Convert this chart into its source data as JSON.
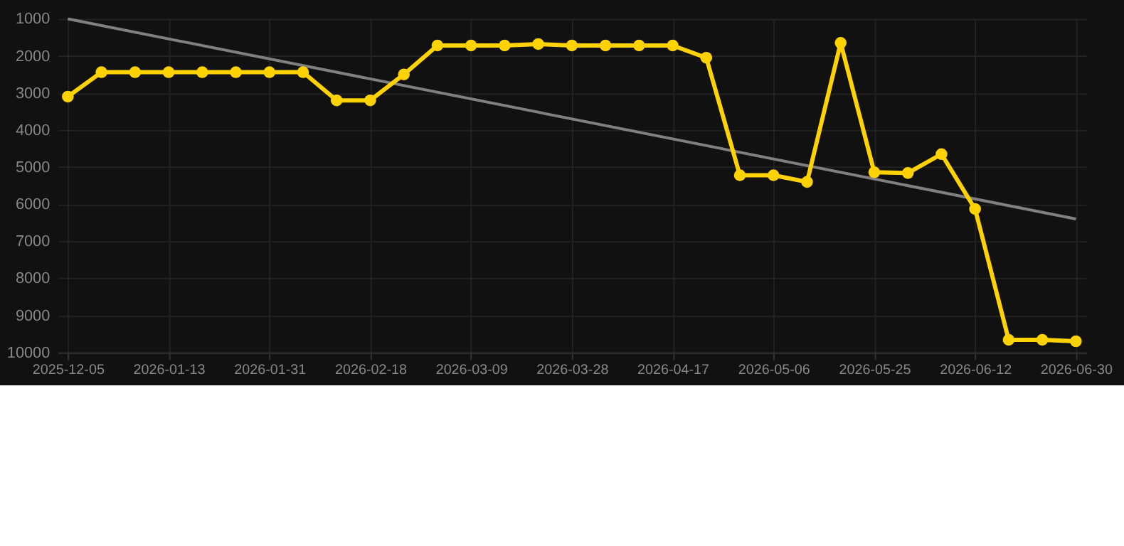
{
  "chart_data": {
    "type": "line",
    "categories": [
      "2025-12-05",
      null,
      null,
      "2026-01-13",
      null,
      null,
      "2026-01-31",
      null,
      null,
      "2026-02-18",
      null,
      null,
      "2026-03-09",
      null,
      null,
      "2026-03-28",
      null,
      null,
      "2026-04-17",
      null,
      null,
      "2026-05-06",
      null,
      null,
      "2026-05-25",
      null,
      null,
      "2026-06-12",
      null,
      null,
      "2026-06-30"
    ],
    "series": [
      {
        "color": "#ffd200",
        "marker": "circle",
        "values": [
          3100,
          2440,
          2440,
          2440,
          2440,
          2440,
          2440,
          2440,
          3200,
          3200,
          2500,
          1720,
          1720,
          1720,
          1680,
          1720,
          1720,
          1720,
          1720,
          2050,
          5220,
          5220,
          5400,
          1650,
          5140,
          5160,
          4650,
          6130,
          9660,
          9660,
          9700
        ]
      },
      {
        "type": "line",
        "color": "#808080",
        "marker": "none",
        "values": [
          1000,
          null,
          null,
          null,
          null,
          null,
          null,
          null,
          null,
          null,
          null,
          null,
          null,
          null,
          null,
          null,
          null,
          null,
          null,
          null,
          null,
          null,
          null,
          null,
          null,
          null,
          null,
          null,
          null,
          null,
          6400
        ]
      }
    ],
    "ylim": [
      10000,
      1000
    ],
    "yticks": [
      1000,
      2000,
      3000,
      4000,
      5000,
      6000,
      7000,
      8000,
      9000,
      10000
    ],
    "grid": true
  }
}
